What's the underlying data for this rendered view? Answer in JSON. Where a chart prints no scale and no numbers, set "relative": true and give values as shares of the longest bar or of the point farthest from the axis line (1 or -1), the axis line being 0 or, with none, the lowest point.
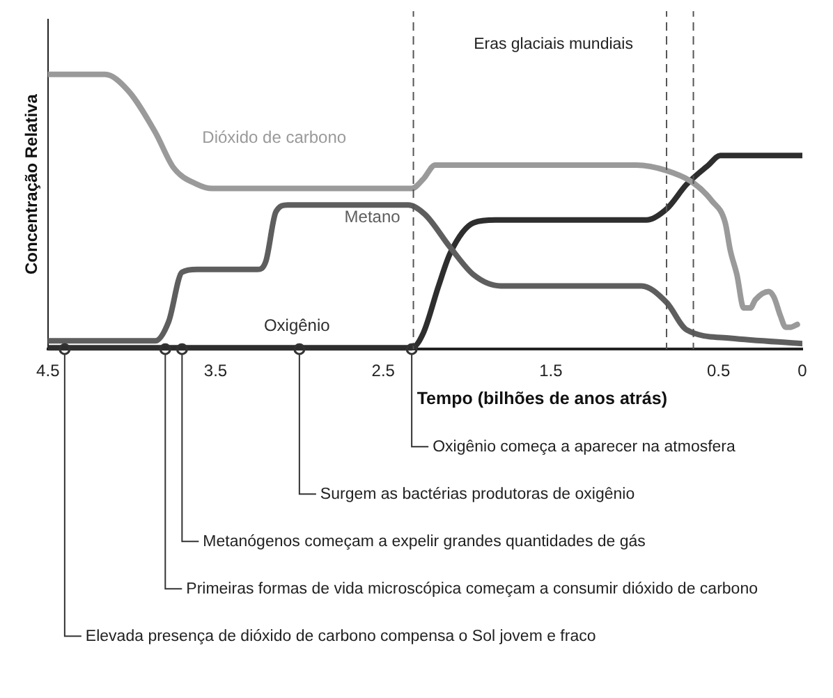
{
  "chart_data": {
    "type": "line",
    "relative": true,
    "xlabel": "Tempo (bilhões de anos atrás)",
    "ylabel": "Concentração Relativa",
    "xlim": [
      4.5,
      0
    ],
    "xticks": [
      4.5,
      3.5,
      2.5,
      1.5,
      0.5,
      0
    ],
    "grid": false,
    "legend": false,
    "marker": "none",
    "line_style": "solid",
    "series": [
      {
        "name": "Dióxido de carbono",
        "color": "#9a9a9a",
        "x": [
          4.5,
          4.16,
          4.02,
          3.86,
          3.75,
          3.61,
          3.52,
          2.33,
          2.26,
          2.19,
          0.99,
          0.81,
          0.65,
          0.54,
          0.46,
          0.43,
          0.39,
          0.35,
          0.31,
          0.28,
          0.2,
          0.17,
          0.13,
          0.1,
          0.07,
          0.03
        ],
        "values": [
          1.0,
          1.0,
          0.94,
          0.79,
          0.66,
          0.6,
          0.585,
          0.585,
          0.62,
          0.67,
          0.67,
          0.65,
          0.605,
          0.54,
          0.46,
          0.36,
          0.27,
          0.15,
          0.15,
          0.18,
          0.21,
          0.19,
          0.12,
          0.08,
          0.08,
          0.09
        ]
      },
      {
        "name": "Metano",
        "color": "#5e5e5e",
        "x": [
          4.5,
          3.86,
          3.78,
          3.7,
          3.61,
          3.25,
          3.2,
          3.14,
          3.07,
          2.35,
          2.25,
          2.1,
          1.96,
          1.8,
          0.96,
          0.81,
          0.69,
          0.43,
          0.0
        ],
        "values": [
          0.03,
          0.03,
          0.1,
          0.28,
          0.29,
          0.29,
          0.32,
          0.5,
          0.525,
          0.525,
          0.49,
          0.37,
          0.27,
          0.23,
          0.23,
          0.17,
          0.07,
          0.04,
          0.02
        ]
      },
      {
        "name": "Oxigênio",
        "color": "#2e2e2e",
        "x": [
          4.5,
          2.33,
          2.26,
          2.17,
          2.1,
          1.96,
          1.83,
          0.93,
          0.81,
          0.69,
          0.56,
          0.49,
          0.0
        ],
        "values": [
          0.005,
          0.005,
          0.06,
          0.23,
          0.35,
          0.46,
          0.47,
          0.47,
          0.51,
          0.6,
          0.67,
          0.705,
          0.705
        ]
      }
    ],
    "ref_lines": [
      {
        "axis": "x",
        "value": 2.32,
        "color": "#555555",
        "line_style": "dashed"
      },
      {
        "axis": "x",
        "value": 0.81,
        "color": "#555555",
        "line_style": "dashed"
      },
      {
        "axis": "x",
        "value": 0.65,
        "color": "#555555",
        "line_style": "dashed"
      }
    ],
    "annotations": [
      "Eras glaciais mundiais",
      {
        "text": "Oxigênio começa a aparecer na atmosfera",
        "x": 2.33,
        "y": 0
      },
      {
        "text": "Surgem as bactérias produtoras de oxigênio",
        "x": 3.0,
        "y": 0
      },
      {
        "text": "Metanógenos começam a expelir grandes quantidades de gás",
        "x": 3.7,
        "y": 0
      },
      {
        "text": "Primeiras formas de vida microscópica começam a consumir dióxido de carbono",
        "x": 3.8,
        "y": 0
      },
      {
        "text": "Elevada presença de dióxido de carbono compensa o Sol jovem e fraco",
        "x": 4.4,
        "y": 0
      }
    ]
  }
}
